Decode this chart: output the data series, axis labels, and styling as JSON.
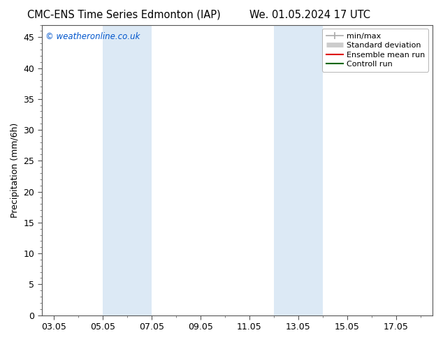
{
  "title_left": "CMC-ENS Time Series Edmonton (IAP)",
  "title_right": "We. 01.05.2024 17 UTC",
  "ylabel": "Precipitation (mm/6h)",
  "ylim": [
    0,
    47
  ],
  "yticks": [
    0,
    5,
    10,
    15,
    20,
    25,
    30,
    35,
    40,
    45
  ],
  "xtick_labels": [
    "03.05",
    "05.05",
    "07.05",
    "09.05",
    "11.05",
    "13.05",
    "15.05",
    "17.05"
  ],
  "xtick_positions": [
    2,
    4,
    6,
    8,
    10,
    12,
    14,
    16
  ],
  "x_minor_positions": [
    1,
    2,
    3,
    4,
    5,
    6,
    7,
    8,
    9,
    10,
    11,
    12,
    13,
    14,
    15,
    16,
    17
  ],
  "xlim": [
    1.5,
    17.5
  ],
  "shaded_bands": [
    {
      "xmin": 4.0,
      "xmax": 6.0,
      "color": "#dce9f5"
    },
    {
      "xmin": 11.0,
      "xmax": 13.0,
      "color": "#dce9f5"
    }
  ],
  "watermark": "© weatheronline.co.uk",
  "watermark_color": "#0055cc",
  "legend_items": [
    {
      "label": "min/max",
      "color": "#aaaaaa",
      "lw": 1.2
    },
    {
      "label": "Standard deviation",
      "color": "#cccccc",
      "lw": 5
    },
    {
      "label": "Ensemble mean run",
      "color": "#dd0000",
      "lw": 1.5
    },
    {
      "label": "Controll run",
      "color": "#006600",
      "lw": 1.5
    }
  ],
  "background_color": "#ffffff",
  "plot_bg_color": "#ffffff",
  "spine_color": "#555555",
  "tick_color": "#333333",
  "title_fontsize": 10.5,
  "ylabel_fontsize": 9,
  "tick_fontsize": 9,
  "watermark_fontsize": 8.5,
  "legend_fontsize": 8
}
